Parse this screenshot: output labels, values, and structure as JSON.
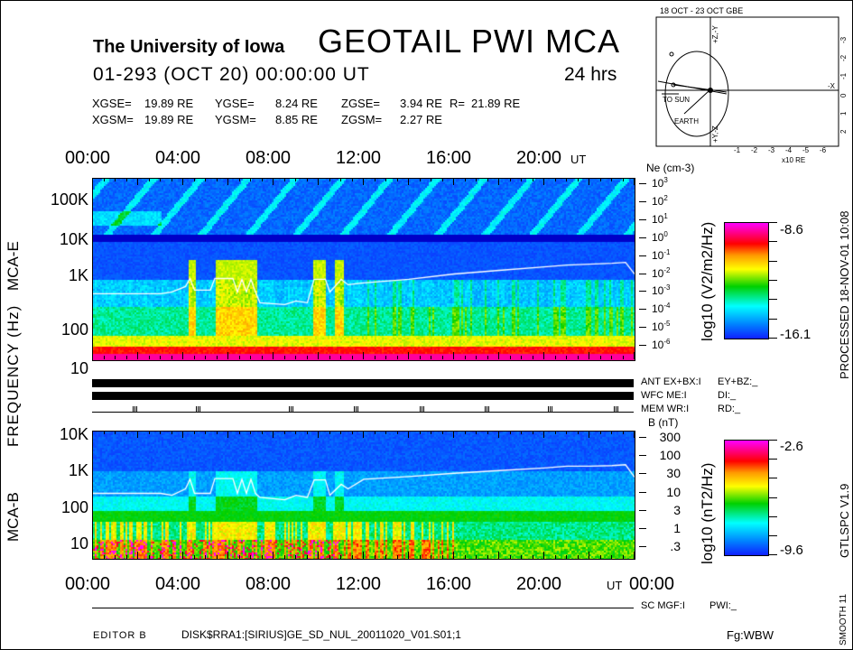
{
  "header": {
    "institution": "The University of Iowa",
    "title": "GEOTAIL PWI MCA",
    "date_line": "01-293 (OCT 20) 00:00:00 UT",
    "duration": "24 hrs",
    "coords_gse": [
      "XGSE=",
      "19.89 RE",
      "YGSE=",
      "8.24 RE",
      "ZGSE=",
      "3.94 RE",
      "R=",
      "21.89 RE"
    ],
    "coords_gsm": [
      "XGSM=",
      "19.89 RE",
      "YGSM=",
      "8.85 RE",
      "ZGSM=",
      "2.27 RE"
    ]
  },
  "orbit_plot": {
    "title": "18 OCT - 23 OCT GBE",
    "x_ticks": [
      "-1",
      "-2",
      "-3",
      "-4",
      "-5",
      "-6"
    ],
    "x_label": "x10 RE",
    "y_ticks": [
      "-3",
      "-2",
      "-1",
      "0",
      "1",
      "2"
    ],
    "labels": {
      "to_sun": "TO SUN",
      "earth": "EARTH",
      "minus_x": "-X",
      "plus_z_top": "+Z,-Y",
      "plus_y_bottom": "+Y,-Z"
    }
  },
  "time_axis": {
    "ticks": [
      "00:00",
      "04:00",
      "08:00",
      "12:00",
      "16:00",
      "20:00",
      "00:00"
    ],
    "unit": "UT"
  },
  "left_labels": {
    "frequency": "FREQUENCY (Hz)",
    "panel_e": "MCA-E",
    "panel_b": "MCA-B"
  },
  "status": {
    "ant": "ANT EX+BX:I",
    "ant2": "EY+BZ:_",
    "wfc": "WFC ME:I",
    "wfc2": "DI:_",
    "mem": "MEM WR:I",
    "mem2": "RD:_",
    "sc": "SC MGF:I",
    "sc2": "PWI:_"
  },
  "footer": {
    "editor": "EDITOR B",
    "file": "DISK$RRA1:[SIRIUS]GE_SD_NUL_20011020_V01.S01;1",
    "fg": "Fg:WBW"
  },
  "side_text": {
    "processed": "PROCESSED 18-NOV-01 10:08",
    "version": "GTLSPC V1.9",
    "smooth": "SMOOTH 11"
  },
  "chart_data": [
    {
      "type": "heatmap",
      "name": "MCA-E",
      "xlabel": "UT",
      "x_range_hours": [
        0,
        24
      ],
      "ylabel": "FREQUENCY (Hz)",
      "y_scale": "log",
      "y_ticks": [
        "100K",
        "10K",
        "1K",
        "100",
        "10"
      ],
      "right_axis": {
        "label": "Ne (cm-3)",
        "ticks": [
          "10^3",
          "10^2",
          "10^1",
          "10^0",
          "10^-1",
          "10^-2",
          "10^-3",
          "10^-4",
          "10^-5",
          "10^-6"
        ]
      },
      "colorbar": {
        "label": "log10 (V2/m2/Hz)",
        "max": "-8.6",
        "min": "-16.1"
      },
      "trace_log_ne": {
        "hours": [
          0,
          3,
          3.5,
          4.1,
          4.3,
          4.5,
          5.2,
          5.4,
          6.2,
          6.4,
          6.6,
          6.8,
          7,
          7.2,
          7.4,
          8.5,
          9,
          9.5,
          9.8,
          10.3,
          10.5,
          11,
          11.3,
          12,
          14,
          16,
          18,
          20,
          21,
          22,
          23,
          23.6,
          24
        ],
        "values": [
          -3.1,
          -3.1,
          -3.0,
          -2.7,
          -2.25,
          -2.9,
          -2.9,
          -2.25,
          -2.25,
          -3.0,
          -2.3,
          -3.0,
          -2.3,
          -3.0,
          -3.6,
          -3.7,
          -3.5,
          -3.6,
          -2.3,
          -2.3,
          -3.0,
          -2.3,
          -2.6,
          -2.5,
          -2.3,
          -2.0,
          -1.8,
          -1.6,
          -1.5,
          -1.45,
          -1.4,
          -1.35,
          -2.0
        ]
      }
    },
    {
      "type": "heatmap",
      "name": "MCA-B",
      "xlabel": "UT",
      "x_range_hours": [
        0,
        24
      ],
      "y_scale": "log",
      "y_ticks": [
        "10K",
        "1K",
        "100",
        "10"
      ],
      "right_axis": {
        "label": "B (nT)",
        "ticks": [
          "300",
          "100",
          "30",
          "10",
          "3",
          "1",
          ".3"
        ]
      },
      "colorbar": {
        "label": "log10 (nT2/Hz)",
        "max": "-2.6",
        "min": "-9.6"
      },
      "trace_b_nT": {
        "hours": [
          0,
          3,
          3.5,
          4.1,
          4.3,
          4.5,
          5.2,
          5.4,
          6.2,
          6.4,
          6.6,
          6.8,
          7,
          7.2,
          7.4,
          8.5,
          9,
          9.5,
          9.8,
          10.3,
          10.5,
          11,
          11.3,
          12,
          14,
          16,
          18,
          20,
          21,
          22,
          23,
          23.6,
          24
        ],
        "values": [
          9,
          9,
          8,
          12,
          22,
          9,
          9,
          23,
          23,
          9,
          22,
          9,
          22,
          9,
          7,
          6,
          8,
          7,
          21,
          21,
          8,
          16,
          12,
          22,
          26,
          32,
          38,
          45,
          50,
          50,
          52,
          55,
          25
        ]
      }
    }
  ]
}
